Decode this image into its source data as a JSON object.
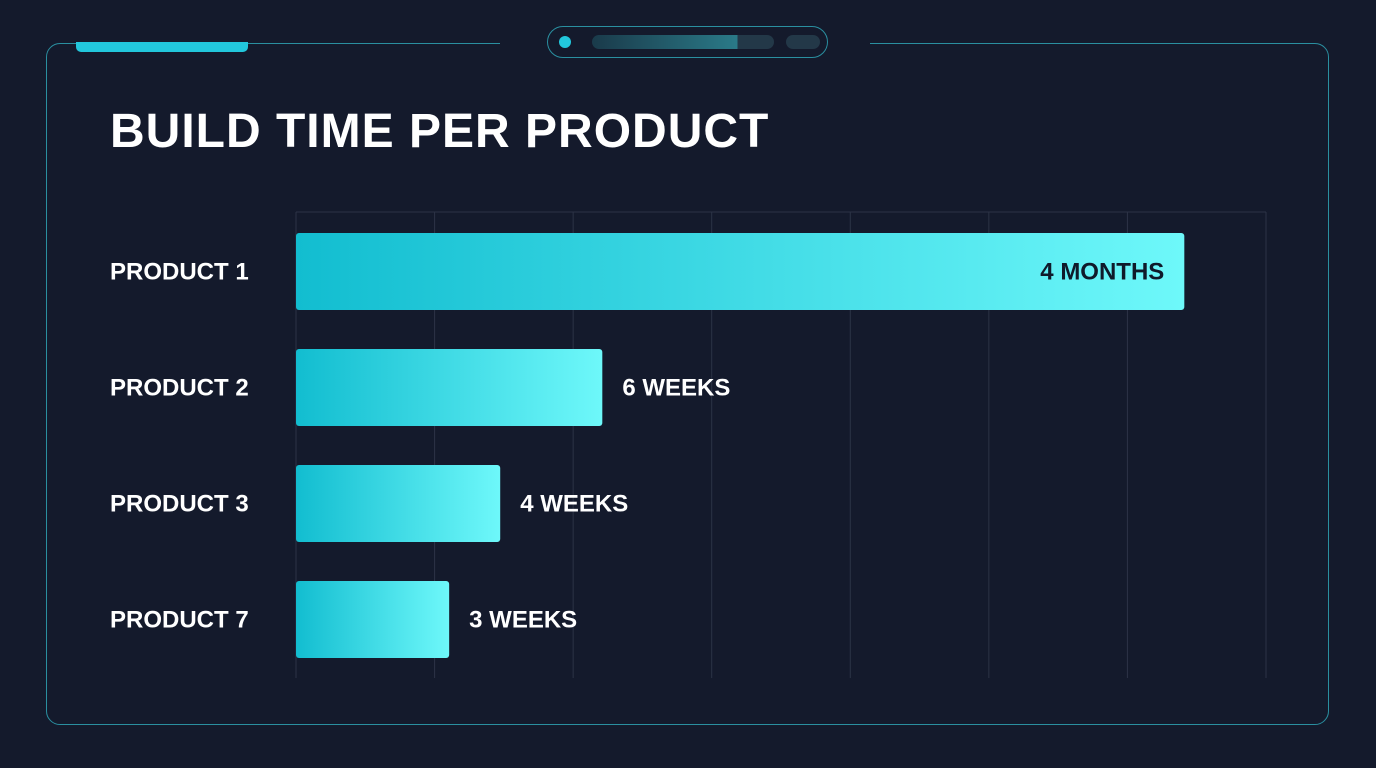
{
  "chart_data": {
    "type": "bar",
    "orientation": "horizontal",
    "title": "BUILD TIME PER PRODUCT",
    "categories": [
      "PRODUCT 1",
      "PRODUCT 2",
      "PRODUCT 3",
      "PRODUCT 7"
    ],
    "values": [
      17.4,
      6,
      4,
      3
    ],
    "value_unit": "weeks",
    "data_labels": [
      "4 MONTHS",
      "6 WEEKS",
      "4 WEEKS",
      "3 WEEKS"
    ],
    "xlim": [
      0,
      19
    ],
    "grid": true,
    "xlabel": "",
    "ylabel": ""
  },
  "colors": {
    "background": "#141a2c",
    "accent": "#22c7dc",
    "bar_start": "#12bdd0",
    "bar_end": "#6ef8fa",
    "grid": "#2c3346"
  }
}
